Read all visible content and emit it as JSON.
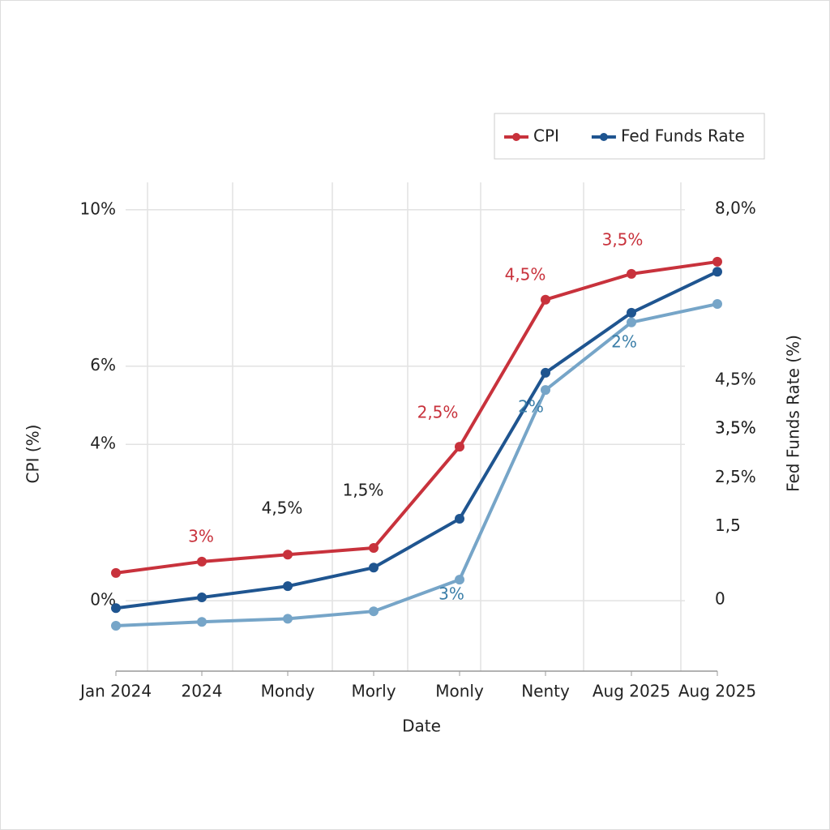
{
  "chart_data": {
    "type": "line",
    "categories": [
      "Jan 2024",
      "2024",
      "Mondy",
      "Morly",
      "Monly",
      "Nenty",
      "Aug 2025",
      "Aug 2025"
    ],
    "x_label": "Date",
    "y_label": "CPI (%)",
    "y2_label": "Fed Funds Rate (%)",
    "ylim": [
      -1.8,
      10.7
    ],
    "yticks": [
      {
        "value": 0,
        "label": "0%"
      },
      {
        "value": 4,
        "label": "4%"
      },
      {
        "value": 6,
        "label": "6%"
      },
      {
        "value": 10,
        "label": "10%"
      }
    ],
    "y2lim": [
      -1.46,
      8.55
    ],
    "y2ticks": [
      {
        "value": 8,
        "label": "8,0%"
      },
      {
        "value": 3.5,
        "label": "3,5%"
      },
      {
        "value": 3.5,
        "label": "3,5%"
      },
      {
        "value": 4.5,
        "label": "4,5%"
      },
      {
        "value": 1.5,
        "label": "1,5"
      },
      {
        "value": 2.5,
        "label": "2,5%"
      },
      0
    ],
    "series": [
      {
        "name": "CPI",
        "color": "#c8323c",
        "values": [
          0.71,
          1.0,
          1.18,
          1.35,
          3.94,
          7.7,
          8.36,
          8.67
        ]
      },
      {
        "name": "Fed Funds Rate",
        "color": "#1f5590",
        "axis": "y2",
        "values": [
          -0.17,
          0.05,
          0.28,
          0.66,
          1.66,
          4.65,
          5.88,
          6.72
        ]
      },
      {
        "color": "#76a5c8",
        "values": [
          -0.64,
          -0.54,
          -0.46,
          -0.27,
          0.54,
          5.39,
          7.12,
          7.59
        ]
      }
    ],
    "annotations": [
      "3%",
      "4,5%",
      "1,5%",
      "2,5%",
      "4,5%",
      "3,5%",
      "3%",
      "2%",
      "2%"
    ],
    "grid": true,
    "legend": "top-right"
  }
}
